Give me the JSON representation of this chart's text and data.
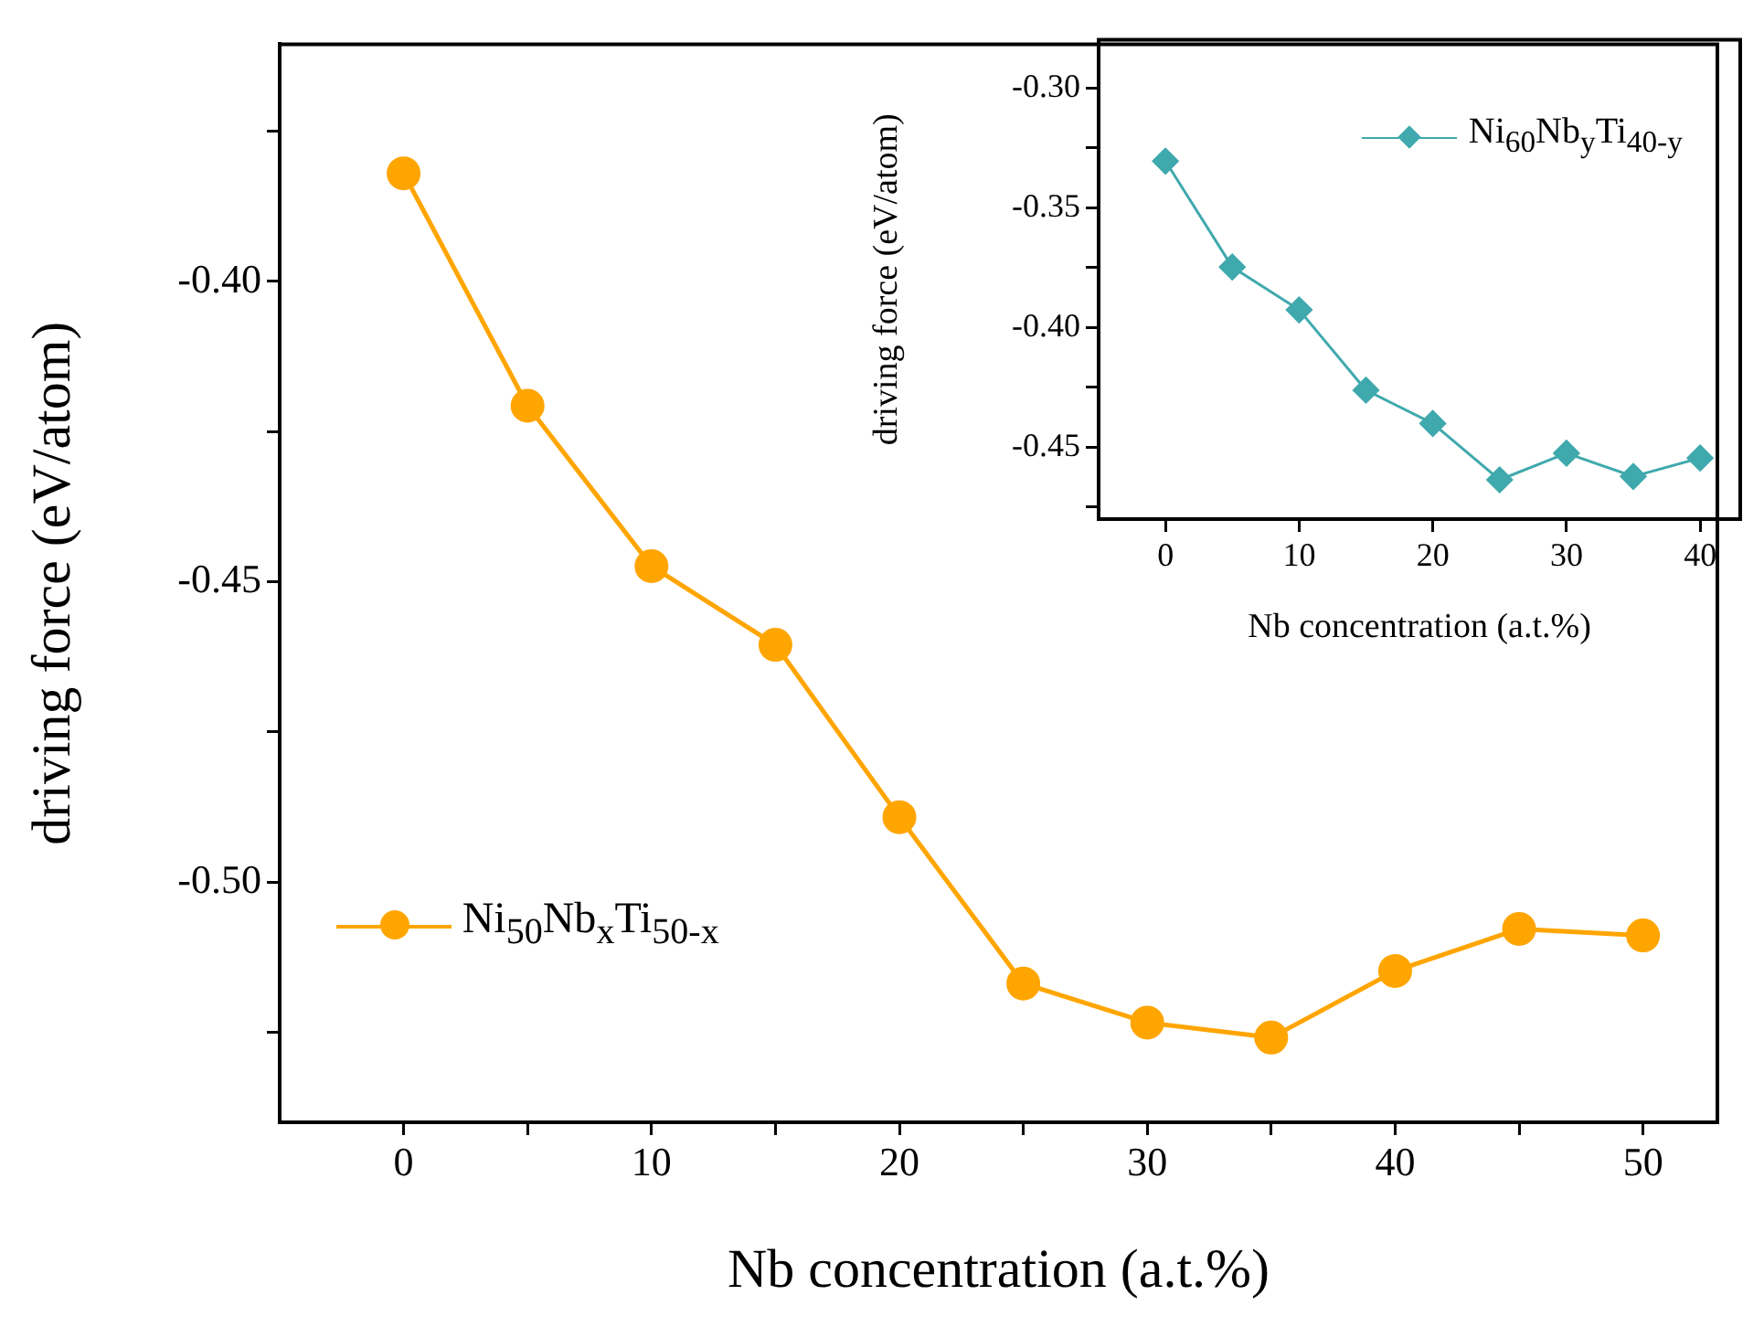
{
  "chart_data": [
    {
      "type": "line",
      "xlabel": "Nb concentration (a.t.%)",
      "ylabel": "driving force (eV/atom)",
      "x": [
        0,
        5,
        10,
        15,
        20,
        25,
        30,
        35,
        40,
        45,
        50
      ],
      "series": [
        {
          "name": "Ni$_{50}$Nb$_{x}$Ti$_{50-x}$",
          "color": "#ffa500",
          "values": [
            -0.382,
            -0.4207,
            -0.4474,
            -0.4605,
            -0.4892,
            -0.5169,
            -0.5234,
            -0.5259,
            -0.5148,
            -0.5078,
            -0.5089
          ]
        }
      ],
      "xlim": [
        -5,
        53
      ],
      "xticks": [
        0,
        {
          "value": 5,
          "label": null
        },
        10,
        {
          "value": 15,
          "label": null
        },
        20,
        {
          "value": 25,
          "label": null
        },
        30,
        {
          "value": 35,
          "label": null
        },
        40,
        {
          "value": 45,
          "label": null
        },
        50
      ],
      "ylim": [
        -0.54,
        -0.3605
      ],
      "yticks": [
        {
          "value": -0.525,
          "label": null
        },
        {
          "value": -0.5,
          "label": "-0.50"
        },
        {
          "value": -0.475,
          "label": null
        },
        {
          "value": -0.45,
          "label": "-0.45"
        },
        {
          "value": -0.425,
          "label": null
        },
        {
          "value": -0.4,
          "label": "-0.40"
        },
        {
          "value": -0.375,
          "label": null
        }
      ],
      "grid": false,
      "legend": "bottom left",
      "marker": "circle",
      "line_style": "solid"
    },
    {
      "type": "line",
      "xlabel": "Nb concentration (a.t.%)",
      "ylabel": "driving force (eV/atom)",
      "x": [
        0,
        5,
        10,
        15,
        20,
        25,
        30,
        35,
        40
      ],
      "series": [
        {
          "name": "Ni$_{60}$Nb$_{y}$Ti$_{40-y}$",
          "color": "#3fa9ad",
          "values": [
            -0.3306,
            -0.3748,
            -0.3927,
            -0.4262,
            -0.4401,
            -0.4636,
            -0.4525,
            -0.4622,
            -0.4545
          ]
        }
      ],
      "xlim": [
        -5,
        43
      ],
      "xticks": [
        0,
        10,
        20,
        30,
        40
      ],
      "ylim": [
        -0.48,
        -0.28
      ],
      "yticks": [
        {
          "value": -0.475,
          "label": null
        },
        {
          "value": -0.45,
          "label": "-0.45"
        },
        {
          "value": -0.425,
          "label": null
        },
        {
          "value": -0.4,
          "label": "-0.40"
        },
        {
          "value": -0.375,
          "label": null
        },
        {
          "value": -0.35,
          "label": "-0.35"
        },
        {
          "value": -0.325,
          "label": null
        },
        {
          "value": -0.3,
          "label": "-0.30"
        }
      ],
      "grid": false,
      "legend": "top right",
      "marker": "diamond",
      "line_style": "solid"
    }
  ]
}
